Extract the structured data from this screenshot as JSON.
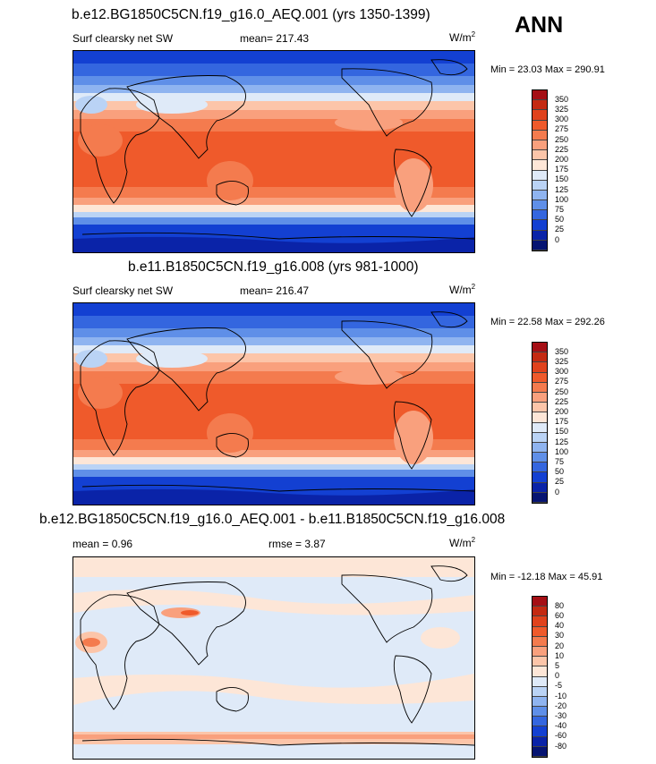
{
  "season": "ANN",
  "units": {
    "base": "W/m",
    "exp": "2"
  },
  "panels": [
    {
      "title": "b.e12.BG1850C5CN.f19_g16.0_AEQ.001 (yrs 1350-1399)",
      "left_label": "Surf clearsky net SW",
      "center_label": "mean= 217.43",
      "minmax": "Min =  23.03 Max = 290.91",
      "kind": "abs"
    },
    {
      "title": "b.e11.B1850C5CN.f19_g16.008 (yrs 981-1000)",
      "left_label": "Surf clearsky net SW",
      "center_label": "mean= 216.47",
      "minmax": "Min =  22.58 Max = 292.26",
      "kind": "abs"
    },
    {
      "title": "b.e12.BG1850C5CN.f19_g16.0_AEQ.001 - b.e11.B1850C5CN.f19_g16.008",
      "left_label": "mean =   0.96",
      "center_label": "rmse =   3.87",
      "minmax": "Min = -12.18 Max =  45.91",
      "kind": "diff"
    }
  ],
  "colorbars": {
    "abs": {
      "labels": [
        "350",
        "325",
        "300",
        "275",
        "250",
        "225",
        "200",
        "175",
        "150",
        "125",
        "100",
        "75",
        "50",
        "25",
        "0"
      ],
      "colors": [
        "#a50f15",
        "#c42a12",
        "#e0421c",
        "#ef5a2b",
        "#f47b4e",
        "#f9a07d",
        "#fcc5a9",
        "#fde6d7",
        "#dfeaf8",
        "#bad3f5",
        "#8fb4f0",
        "#5f8fe8",
        "#3466df",
        "#1340d2",
        "#0a23a8",
        "#061472"
      ]
    },
    "diff": {
      "labels": [
        "80",
        "60",
        "40",
        "30",
        "20",
        "10",
        "5",
        "0",
        "-5",
        "-10",
        "-20",
        "-30",
        "-40",
        "-60",
        "-80"
      ],
      "colors": [
        "#a50f15",
        "#c42a12",
        "#e0421c",
        "#ef5a2b",
        "#f47b4e",
        "#f9a07d",
        "#fcc5a9",
        "#fde6d7",
        "#dfeaf8",
        "#bad3f5",
        "#8fb4f0",
        "#5f8fe8",
        "#3466df",
        "#1340d2",
        "#0a23a8",
        "#061472"
      ]
    }
  }
}
